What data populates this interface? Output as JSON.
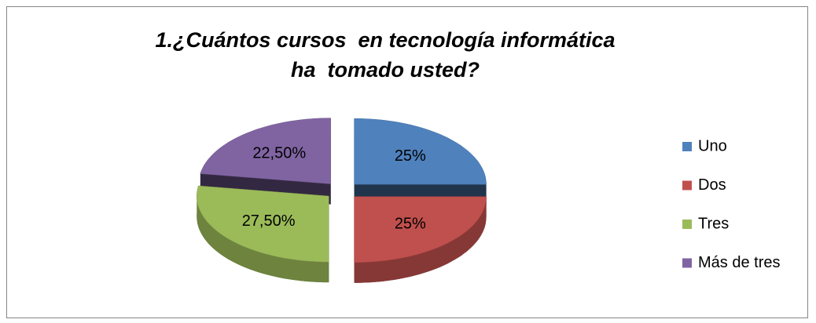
{
  "chart_data": {
    "type": "pie",
    "title": "1.¿Cuántos cursos  en tecnología informática ha  tomado usted?",
    "categories": [
      "Uno",
      "Dos",
      "Tres",
      "Más de tres"
    ],
    "values": [
      25,
      25,
      27.5,
      22.5
    ],
    "value_labels": [
      "25%",
      "25%",
      "27,50%",
      "22,50%"
    ],
    "colors": [
      "#4f81bd",
      "#c0504d",
      "#9bbb59",
      "#8064a2"
    ],
    "legend": "right",
    "exploded": true,
    "three_d": true
  }
}
